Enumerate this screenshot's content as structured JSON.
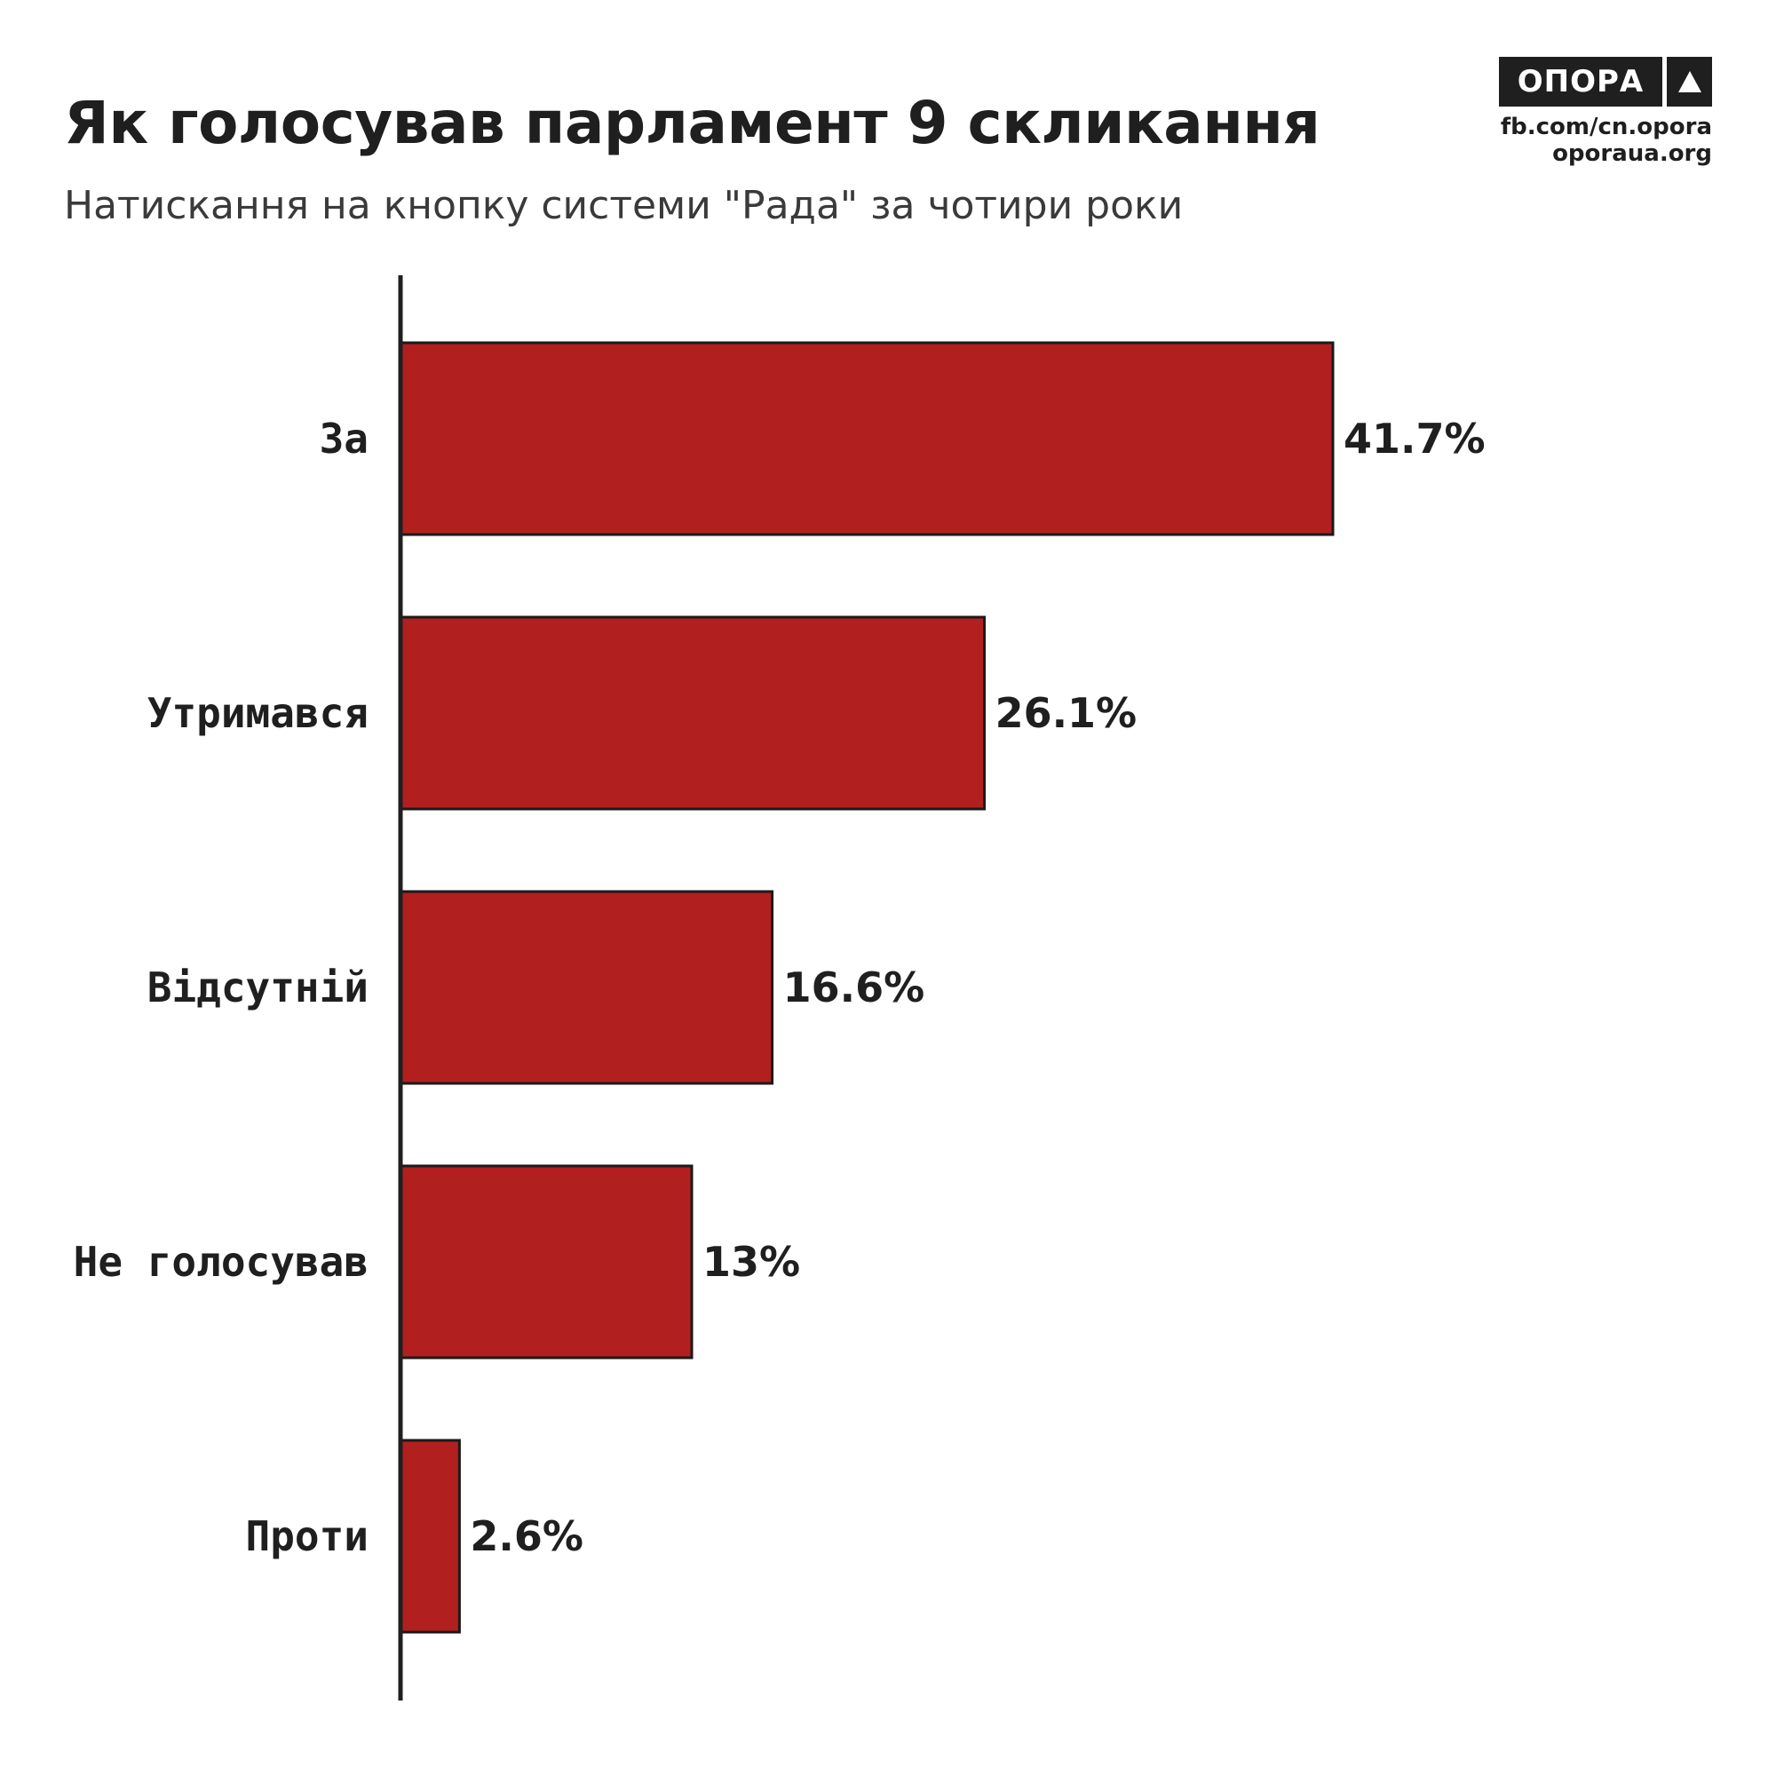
{
  "header": {
    "title": "Як голосував парламент 9 скликання",
    "subtitle": "Натискання на кнопку системи \"Рада\" за чотири роки"
  },
  "brand": {
    "logo_text": "ОПОРА",
    "logo_icon": "triangle-up-icon",
    "line1": "fb.com/cn.opora",
    "line2": "oporaua.org"
  },
  "colors": {
    "bar": "#b21f1f",
    "text": "#1f1f1f"
  },
  "chart_data": {
    "type": "bar",
    "orientation": "horizontal",
    "title": "Як голосував парламент 9 скликання",
    "subtitle": "Натискання на кнопку системи \"Рада\" за чотири роки",
    "categories": [
      "За",
      "Утримався",
      "Відсутній",
      "Не голосував",
      "Проти"
    ],
    "values": [
      41.7,
      26.1,
      16.6,
      13,
      2.6
    ],
    "value_labels": [
      "41.7%",
      "26.1%",
      "16.6%",
      "13%",
      "2.6%"
    ],
    "xlim": [
      0,
      50
    ],
    "xlabel": "",
    "ylabel": "",
    "grid": false,
    "legend": "none"
  }
}
